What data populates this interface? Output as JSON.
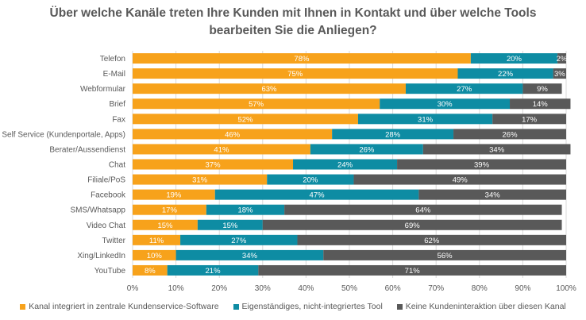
{
  "title_line1": "Über welche Kanäle treten Ihre Kunden mit Ihnen in Kontakt und über welche Tools",
  "title_line2": "bearbeiten Sie die Anliegen?",
  "colors": {
    "orange": "#F7A21B",
    "teal": "#0E8CA3",
    "gray": "#595959",
    "grid": "#d9d9d9"
  },
  "chart_data": {
    "type": "bar",
    "orientation": "horizontal",
    "stacked": true,
    "categories": [
      "Telefon",
      "E-Mail",
      "Webformular",
      "Brief",
      "Fax",
      "Self Service (Kundenportale, Apps)",
      "Berater/Aussendienst",
      "Chat",
      "Filiale/PoS",
      "Facebook",
      "SMS/Whatsapp",
      "Video Chat",
      "Twitter",
      "Xing/LinkedIn",
      "YouTube"
    ],
    "series": [
      {
        "name": "Kanal integriert in zentrale Kundenservice-Software",
        "values": [
          78,
          75,
          63,
          57,
          52,
          46,
          41,
          37,
          31,
          19,
          17,
          15,
          11,
          10,
          8
        ]
      },
      {
        "name": "Eigenständiges, nicht-integriertes Tool",
        "values": [
          20,
          22,
          27,
          30,
          31,
          28,
          26,
          24,
          20,
          47,
          18,
          15,
          27,
          34,
          21
        ]
      },
      {
        "name": "Keine Kundeninteraktion über diesen Kanal",
        "values": [
          2,
          3,
          9,
          14,
          17,
          26,
          34,
          39,
          49,
          34,
          64,
          69,
          62,
          56,
          71
        ]
      }
    ],
    "xticks": [
      "0%",
      "10%",
      "20%",
      "30%",
      "40%",
      "50%",
      "60%",
      "70%",
      "80%",
      "90%",
      "100%"
    ],
    "xlim": [
      0,
      100
    ],
    "grid": true,
    "legend": "bottom"
  }
}
